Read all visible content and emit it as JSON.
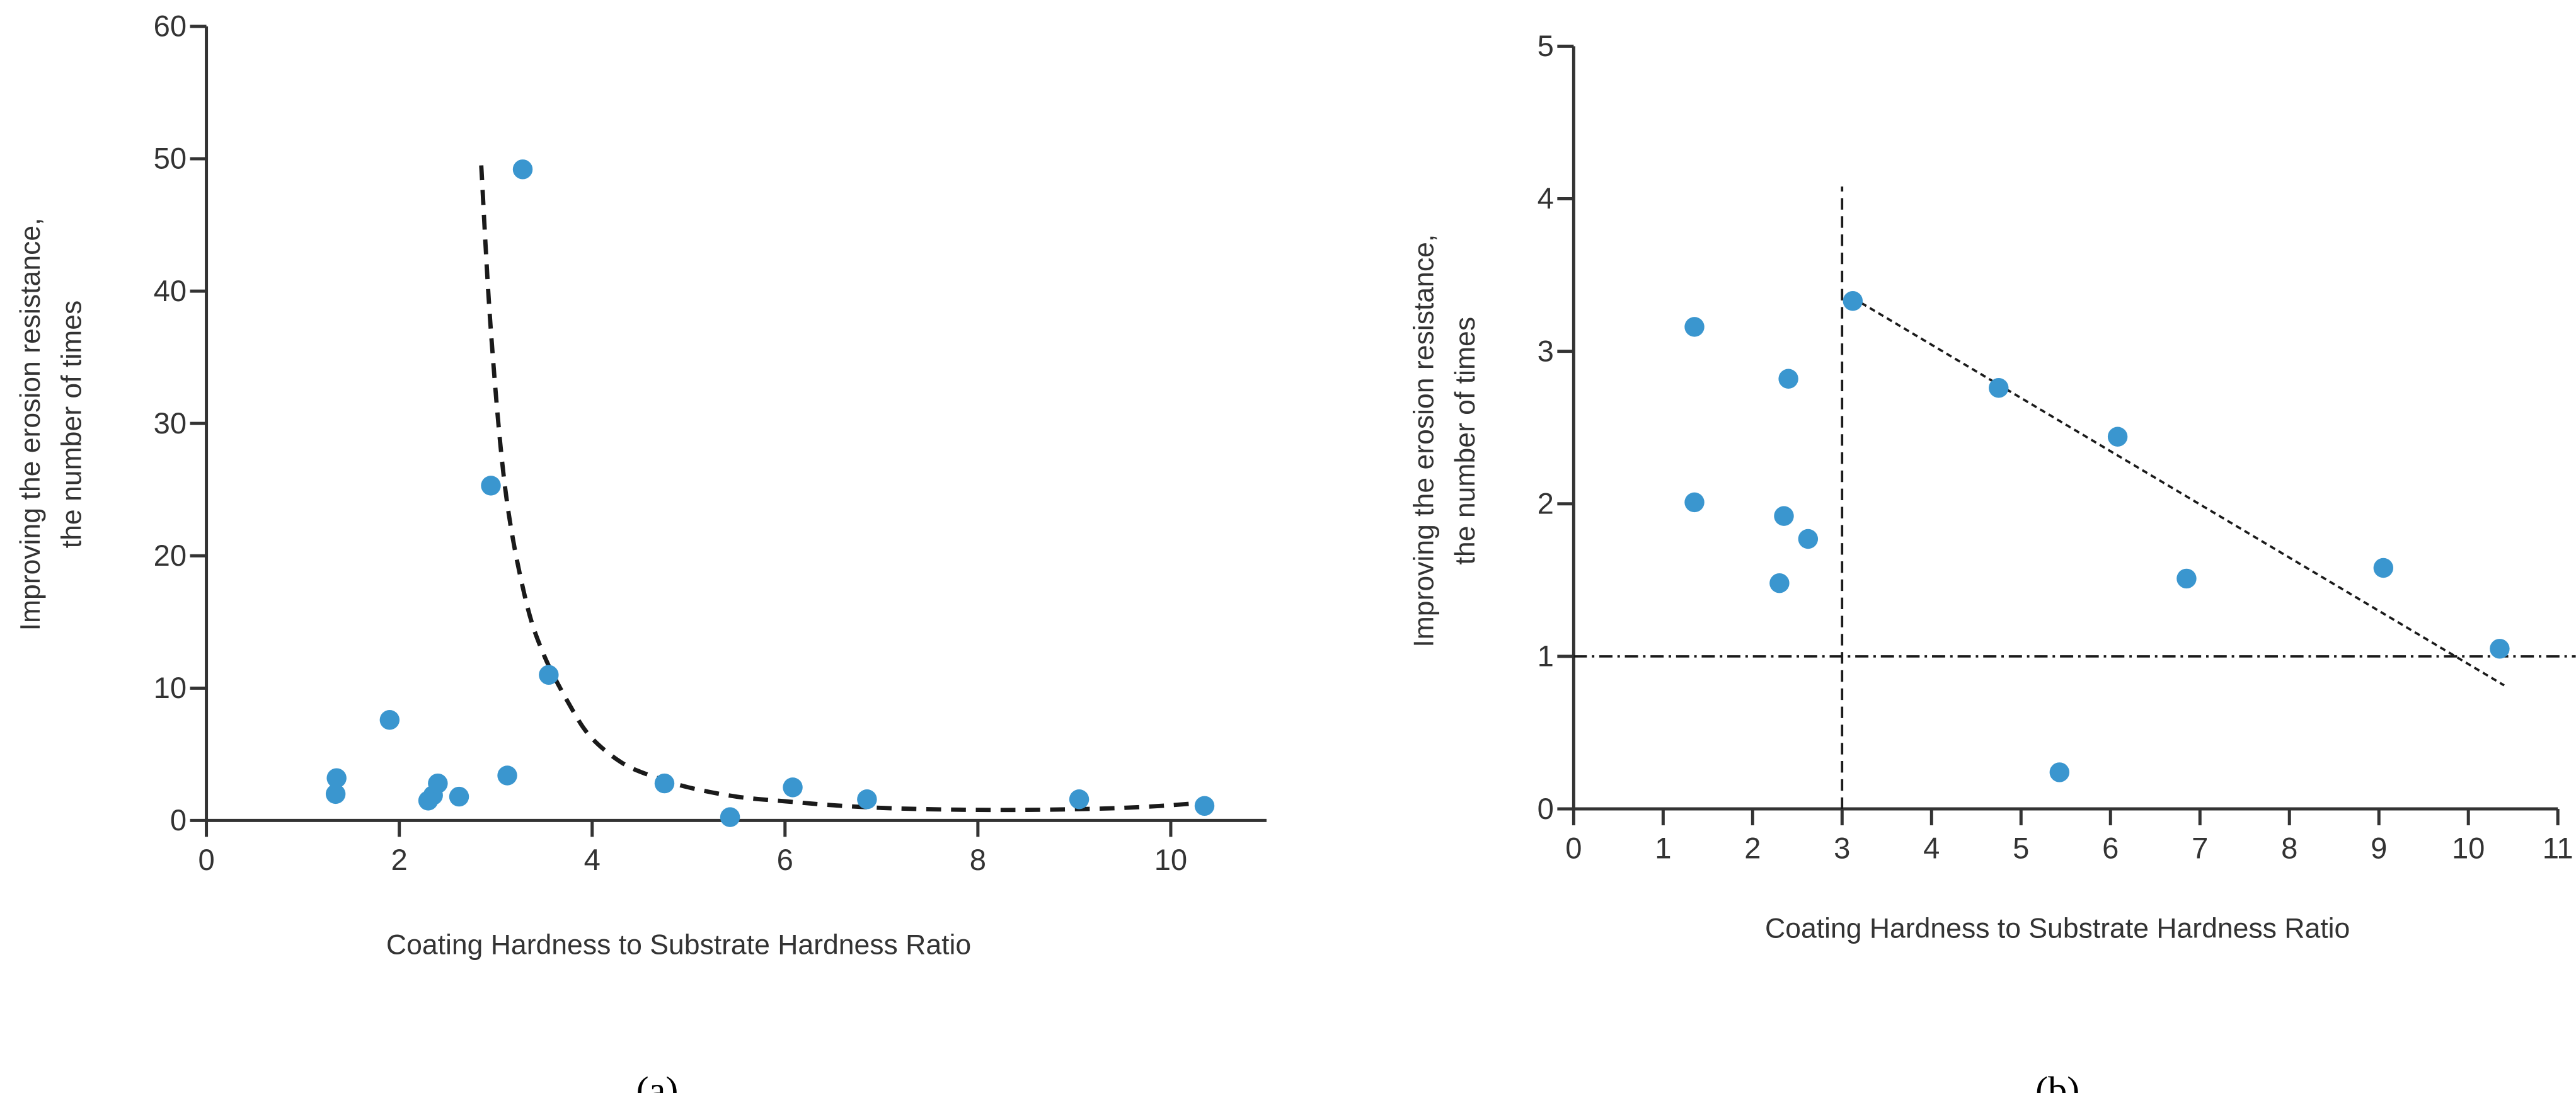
{
  "chart_data": [
    {
      "type": "scatter",
      "panel_label": "(a)",
      "xlabel": "Coating Hardness to Substrate Hardness Ratio",
      "ylabel_lines": [
        "Improving the erosion resistance,",
        "the number of times"
      ],
      "xlim": [
        0,
        11
      ],
      "ylim": [
        0,
        60
      ],
      "xticks": [
        0,
        2,
        4,
        6,
        8,
        10
      ],
      "yticks": [
        0,
        10,
        20,
        30,
        40,
        50,
        60
      ],
      "series": [
        {
          "name": "data",
          "color": "#3a96cf",
          "x": [
            1.34,
            1.35,
            1.9,
            2.3,
            2.35,
            2.4,
            2.62,
            2.95,
            3.12,
            3.28,
            3.55,
            4.75,
            5.43,
            6.08,
            6.85,
            9.05,
            10.35
          ],
          "y": [
            2.0,
            3.2,
            7.6,
            1.5,
            1.9,
            2.8,
            1.8,
            25.3,
            3.4,
            49.2,
            11.0,
            2.8,
            0.25,
            2.5,
            1.6,
            1.6,
            1.1
          ]
        }
      ],
      "trendline": {
        "style": "dashed",
        "x": [
          2.85,
          2.95,
          3.1,
          3.3,
          3.5,
          3.8,
          4.0,
          4.3,
          4.6,
          5.0,
          5.5,
          6.0,
          6.5,
          7.0,
          7.5,
          8.0,
          8.5,
          9.0,
          9.5,
          10.0,
          10.4
        ],
        "y": [
          49.5,
          37.0,
          25.0,
          17.0,
          12.5,
          8.3,
          6.2,
          4.4,
          3.4,
          2.5,
          1.8,
          1.45,
          1.15,
          0.95,
          0.85,
          0.8,
          0.8,
          0.85,
          0.95,
          1.15,
          1.4
        ]
      }
    },
    {
      "type": "scatter",
      "panel_label": "(b)",
      "xlabel": "Coating Hardness to Substrate Hardness Ratio",
      "ylabel_lines": [
        "Improving the erosion resistance,",
        "the number of times"
      ],
      "xlim": [
        0,
        11
      ],
      "ylim": [
        0,
        5
      ],
      "xticks": [
        0,
        1,
        2,
        3,
        4,
        5,
        6,
        7,
        8,
        9,
        10,
        11
      ],
      "yticks": [
        0,
        1,
        2,
        3,
        4,
        5
      ],
      "series": [
        {
          "name": "data",
          "color": "#3a96cf",
          "x": [
            1.35,
            1.35,
            2.3,
            2.35,
            2.4,
            2.62,
            3.12,
            4.75,
            5.43,
            6.08,
            6.85,
            9.05,
            10.35
          ],
          "y": [
            2.01,
            3.16,
            1.48,
            1.92,
            2.82,
            1.77,
            3.33,
            2.76,
            0.24,
            2.44,
            1.51,
            1.58,
            1.05
          ]
        }
      ],
      "trendline": {
        "style": "dotted",
        "x": [
          3.12,
          10.4
        ],
        "y": [
          3.35,
          0.81
        ]
      },
      "reference_lines": [
        {
          "orientation": "vertical",
          "value": 3,
          "range": [
            0,
            4.08
          ],
          "style": "dashed"
        },
        {
          "orientation": "horizontal",
          "value": 1,
          "range": [
            0,
            11.2
          ],
          "style": "dash-dot"
        }
      ]
    }
  ]
}
